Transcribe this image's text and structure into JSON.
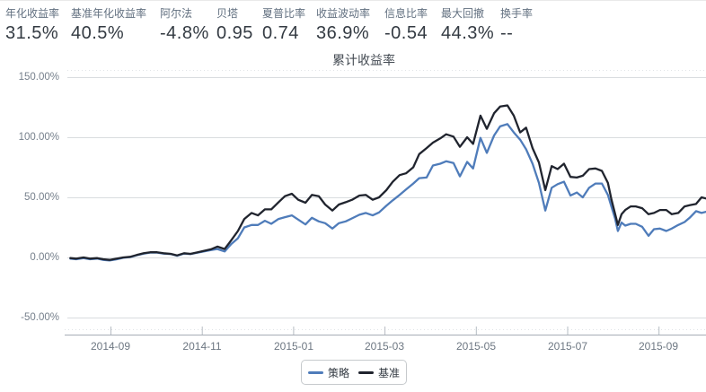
{
  "stats": {
    "items": [
      {
        "label": "年化收益率",
        "value": "31.5%"
      },
      {
        "label": "基准年化收益率",
        "value": "40.5%"
      },
      {
        "label": "阿尔法",
        "value": "-4.8%"
      },
      {
        "label": "贝塔",
        "value": "0.95"
      },
      {
        "label": "夏普比率",
        "value": "0.74"
      },
      {
        "label": "收益波动率",
        "value": "36.9%"
      },
      {
        "label": "信息比率",
        "value": "-0.54"
      },
      {
        "label": "最大回撤",
        "value": "44.3%"
      },
      {
        "label": "换手率",
        "value": "--"
      }
    ]
  },
  "chart_data": {
    "type": "line",
    "title": "累计收益率",
    "xlabel": "",
    "ylabel": "",
    "ylim": [
      -64,
      150
    ],
    "grid": true,
    "legend_position": "bottom-center",
    "y_axis": {
      "ticks": [
        "150.00%",
        "100.00%",
        "50.00%",
        "0.00%",
        "-50.00%"
      ],
      "tick_values": [
        150,
        100,
        50,
        0,
        -50
      ]
    },
    "x_axis": {
      "ticks": [
        "2014-09",
        "2014-11",
        "2015-01",
        "2015-03",
        "2015-05",
        "2015-07",
        "2015-09"
      ],
      "tick_values": [
        0,
        2,
        4,
        6,
        8,
        10,
        12
      ],
      "unit": "months since 2014-09"
    },
    "x": [
      -0.88,
      -0.75,
      -0.59,
      -0.45,
      -0.29,
      -0.16,
      -0.02,
      0.14,
      0.28,
      0.43,
      0.57,
      0.73,
      0.87,
      1.02,
      1.16,
      1.32,
      1.46,
      1.61,
      1.75,
      1.91,
      2.05,
      2.2,
      2.34,
      2.5,
      2.64,
      2.79,
      2.93,
      3.09,
      3.23,
      3.38,
      3.52,
      3.68,
      3.82,
      3.97,
      4.11,
      4.27,
      4.41,
      4.56,
      4.7,
      4.86,
      5.0,
      5.15,
      5.29,
      5.45,
      5.59,
      5.74,
      5.88,
      6.04,
      6.18,
      6.33,
      6.47,
      6.63,
      6.76,
      6.92,
      7.06,
      7.22,
      7.35,
      7.51,
      7.65,
      7.81,
      7.94,
      8.1,
      8.24,
      8.4,
      8.53,
      8.69,
      8.83,
      8.97,
      9.1,
      9.24,
      9.38,
      9.52,
      9.66,
      9.79,
      9.93,
      10.07,
      10.21,
      10.34,
      10.48,
      10.62,
      10.76,
      10.89,
      10.97,
      11.05,
      11.11,
      11.19,
      11.27,
      11.39,
      11.5,
      11.64,
      11.78,
      11.9,
      12.03,
      12.17,
      12.29,
      12.43,
      12.57,
      12.68,
      12.82,
      12.94,
      13.04
    ],
    "series": [
      {
        "name": "策略",
        "color": "#4f7cba",
        "values": [
          -1,
          -1.5,
          -0.5,
          -1.5,
          -1,
          -2,
          -2.5,
          -1.5,
          -0.3,
          0.3,
          1.8,
          3.2,
          4,
          4,
          3.2,
          2.8,
          1.4,
          3.2,
          2.8,
          4,
          5,
          6.2,
          7,
          5,
          11,
          16,
          25,
          27,
          27,
          30.5,
          28,
          32,
          33.5,
          35,
          31.5,
          27.5,
          33,
          30,
          28.5,
          24,
          28.5,
          30,
          32.5,
          35.5,
          37,
          35,
          37.5,
          43,
          47.5,
          52,
          56.5,
          61.5,
          66,
          66.5,
          76.5,
          78,
          80,
          78.5,
          67.5,
          79.5,
          74,
          99.5,
          87,
          101.5,
          109,
          111,
          104,
          98,
          90,
          78,
          62,
          39,
          58,
          61,
          63,
          51.5,
          54,
          50,
          58,
          61.5,
          61.5,
          52,
          42,
          32,
          22,
          29,
          26.5,
          28,
          28,
          25.5,
          18,
          23.5,
          24,
          22,
          24,
          27,
          29.5,
          33,
          38.5,
          37,
          38
        ]
      },
      {
        "name": "基准",
        "color": "#20242e",
        "values": [
          -0.5,
          -1,
          0,
          -1,
          -0.5,
          -1.5,
          -2,
          -1,
          0,
          0.5,
          2,
          3.5,
          4.3,
          4.3,
          3.5,
          3,
          1.7,
          3.5,
          3,
          4.3,
          5.5,
          6.8,
          9,
          7,
          14,
          22,
          32,
          37,
          35,
          40,
          40,
          46,
          51,
          53,
          48,
          45.5,
          52,
          51,
          44,
          39,
          44,
          46,
          48,
          51.5,
          52,
          48,
          50,
          56,
          63,
          68.5,
          70,
          75,
          86,
          91,
          95.5,
          99,
          102.5,
          100.5,
          92,
          100,
          94.5,
          118,
          107,
          120,
          125.5,
          126.5,
          118,
          104,
          108,
          91,
          79,
          56,
          76,
          73.5,
          78,
          67,
          66.5,
          68,
          73.5,
          74,
          72,
          62,
          48,
          36,
          27,
          36,
          39.5,
          42.5,
          42.5,
          41,
          36,
          37,
          39.5,
          39.5,
          36,
          37,
          42.5,
          43.5,
          44.5,
          50,
          49
        ]
      }
    ]
  }
}
